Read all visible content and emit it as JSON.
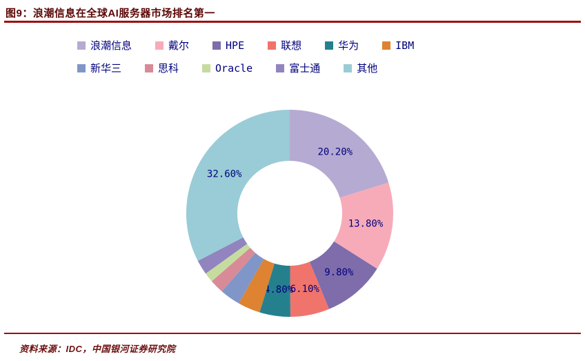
{
  "header": {
    "title": "图9：浪潮信息在全球AI服务器市场排名第一"
  },
  "footer": {
    "source": "资料来源：IDC，中国银河证券研究院"
  },
  "colors": {
    "divider_red": "#9e0b0f",
    "label_navy": "#00007d",
    "title_maroon": "#5c0606"
  },
  "chart_data": {
    "type": "pie",
    "donut": true,
    "title": "浪潮信息在全球AI服务器市场排名第一",
    "legend_position": "top",
    "legend_rows": [
      6,
      5
    ],
    "start_angle_deg": 0,
    "direction": "clockwise",
    "segments": [
      {
        "name": "浪潮信息",
        "value": 20.2,
        "label": "20.20%",
        "color": "#b5aad2"
      },
      {
        "name": "戴尔",
        "value": 13.8,
        "label": "13.80%",
        "color": "#f7abb8"
      },
      {
        "name": "HPE",
        "value": 9.8,
        "label": "9.80%",
        "color": "#7e6cab"
      },
      {
        "name": "联想",
        "value": 6.1,
        "label": "6.10%",
        "color": "#f0746c"
      },
      {
        "name": "华为",
        "value": 4.8,
        "label": "4.80%",
        "color": "#25808e"
      },
      {
        "name": "IBM",
        "value": 3.5,
        "label": null,
        "color": "#dd8331"
      },
      {
        "name": "新华三",
        "value": 3.2,
        "label": null,
        "color": "#8096c8"
      },
      {
        "name": "思科",
        "value": 2.2,
        "label": null,
        "color": "#d88b97"
      },
      {
        "name": "Oracle",
        "value": 1.5,
        "label": null,
        "color": "#c6dc9f"
      },
      {
        "name": "富士通",
        "value": 2.3,
        "label": null,
        "color": "#9184bf"
      },
      {
        "name": "其他",
        "value": 32.6,
        "label": "32.60%",
        "color": "#99ccd6"
      }
    ]
  }
}
